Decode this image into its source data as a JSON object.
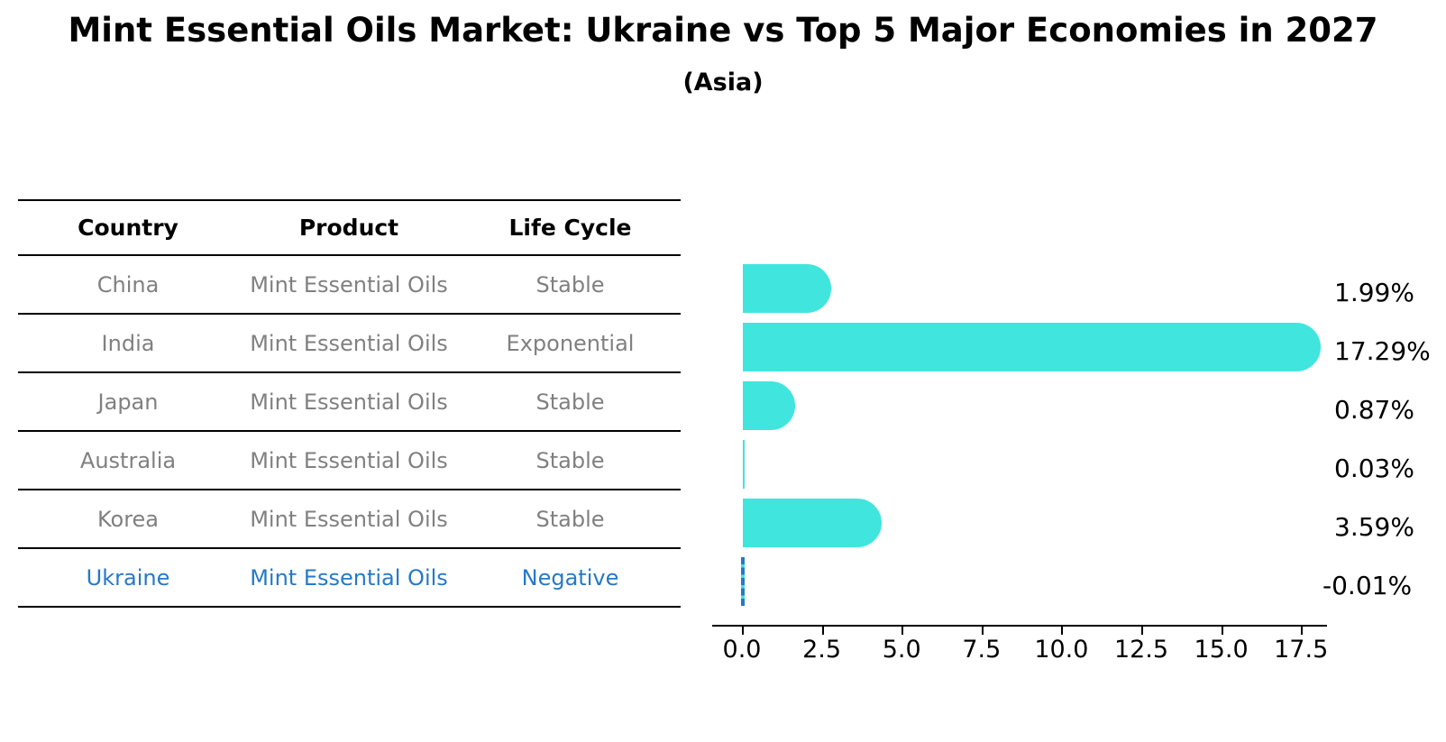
{
  "title": "Mint Essential Oils Market: Ukraine vs Top 5 Major Economies in 2027",
  "subtitle": "(Asia)",
  "table": {
    "headers": [
      "Country",
      "Product",
      "Life Cycle"
    ],
    "rows": [
      {
        "country": "China",
        "product": "Mint Essential Oils",
        "life_cycle": "Stable",
        "highlight": false
      },
      {
        "country": "India",
        "product": "Mint Essential Oils",
        "life_cycle": "Exponential",
        "highlight": false
      },
      {
        "country": "Japan",
        "product": "Mint Essential Oils",
        "life_cycle": "Stable",
        "highlight": false
      },
      {
        "country": "Australia",
        "product": "Mint Essential Oils",
        "life_cycle": "Stable",
        "highlight": false
      },
      {
        "country": "Korea",
        "product": "Mint Essential Oils",
        "life_cycle": "Stable",
        "highlight": false
      },
      {
        "country": "Ukraine",
        "product": "Mint Essential Oils",
        "life_cycle": "Negative",
        "highlight": true
      }
    ]
  },
  "chart_data": {
    "type": "bar",
    "orientation": "horizontal",
    "title": "Mint Essential Oils Market: Ukraine vs Top 5 Major Economies in 2027 (Asia)",
    "categories": [
      "China",
      "India",
      "Japan",
      "Australia",
      "Korea",
      "Ukraine"
    ],
    "values": [
      1.99,
      17.29,
      0.87,
      0.03,
      3.59,
      -0.01
    ],
    "value_labels": [
      "1.99%",
      "17.29%",
      "0.87%",
      "0.03%",
      "3.59%",
      "-0.01%"
    ],
    "xtick_labels": [
      "0.0",
      "2.5",
      "5.0",
      "7.5",
      "10.0",
      "12.5",
      "15.0",
      "17.5"
    ],
    "xlim": [
      0,
      18.3
    ],
    "grid": false,
    "legend": false,
    "bar_color": "#40E5DD",
    "highlight_color": "#2579C8",
    "highlight_category": "Ukraine",
    "highlight_style": "dashed-outline",
    "value_label_position": "right-of-plot"
  }
}
